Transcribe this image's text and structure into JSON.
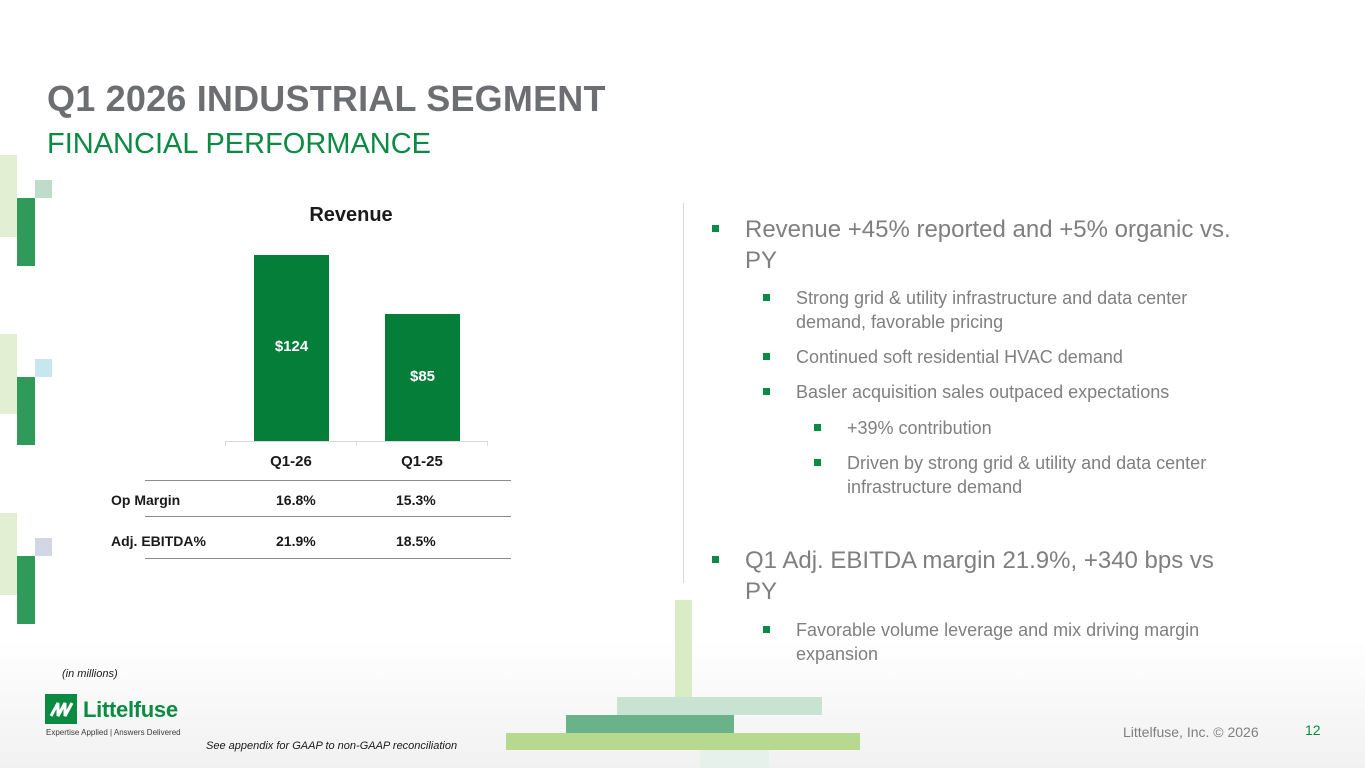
{
  "header": {
    "title": "Q1 2026 INDUSTRIAL SEGMENT",
    "subtitle": "FINANCIAL PERFORMANCE"
  },
  "chart_data": {
    "type": "bar",
    "title": "Revenue",
    "categories": [
      "Q1-26",
      "Q1-25"
    ],
    "values": [
      124,
      85
    ],
    "value_labels": [
      "$124",
      "$85"
    ],
    "unit_note": "(in millions)",
    "bar_color": "#057e3a",
    "grid": false
  },
  "metrics": {
    "rows": [
      {
        "label": "Op Margin",
        "q126": "16.8%",
        "q125": "15.3%"
      },
      {
        "label": "Adj. EBITDA%",
        "q126": "21.9%",
        "q125": "18.5%"
      }
    ]
  },
  "bullets": [
    {
      "level": 1,
      "text": "Revenue +45% reported and +5% organic vs. PY"
    },
    {
      "level": 2,
      "text": "Strong grid & utility infrastructure and data center demand, favorable pricing"
    },
    {
      "level": 2,
      "text": "Continued soft residential HVAC demand"
    },
    {
      "level": 2,
      "text": "Basler acquisition sales outpaced expectations"
    },
    {
      "level": 3,
      "text": "+39% contribution"
    },
    {
      "level": 3,
      "text": "Driven by strong grid & utility and data center infrastructure demand"
    },
    {
      "level": 1,
      "text": "Q1 Adj. EBITDA margin 21.9%, +340 bps vs PY"
    },
    {
      "level": 2,
      "text": "Favorable volume leverage and mix driving margin expansion"
    }
  ],
  "footer": {
    "logo_text": "Littelfuse",
    "logo_tagline": "Expertise Applied | Answers Delivered",
    "appendix_note": "See appendix for GAAP to non-GAAP reconciliation",
    "copyright": "Littelfuse, Inc. © 2026",
    "page_number": "12"
  },
  "colors": {
    "brand_green": "#0a8a43",
    "title_gray": "#6d6e71",
    "body_gray": "#7f7f7f"
  }
}
